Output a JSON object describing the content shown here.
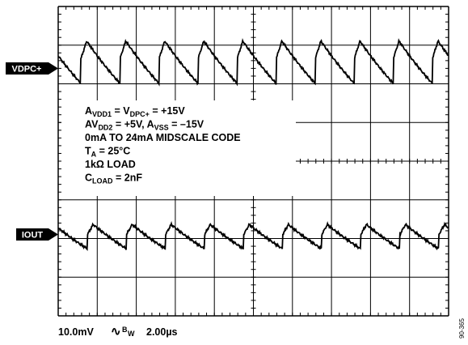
{
  "markers": {
    "channel1": "VDPC+",
    "channel2": "IOUT"
  },
  "conditions": [
    [
      {
        "t": "A"
      },
      {
        "s": "VDD1"
      },
      {
        "t": " = V"
      },
      {
        "s": "DPC+"
      },
      {
        "t": " = +15V"
      }
    ],
    [
      {
        "t": "AV"
      },
      {
        "s": "DD2"
      },
      {
        "t": " = +5V, A"
      },
      {
        "s": "VSS"
      },
      {
        "t": " = –15V"
      }
    ],
    [
      {
        "t": "0mA TO 24mA MIDSCALE CODE"
      }
    ],
    [
      {
        "t": "T"
      },
      {
        "s": "A"
      },
      {
        "t": " = 25°C"
      }
    ],
    [
      {
        "t": "1kΩ LOAD"
      }
    ],
    [
      {
        "t": "C"
      },
      {
        "s": "LOAD"
      },
      {
        "t": " = 2nF"
      }
    ]
  ],
  "footer": {
    "scale": "10.0mV",
    "bw_symbol": "∿",
    "bw_label": "B",
    "bw_sub": "W",
    "timebase": "2.00µs"
  },
  "figure_id": "90-365"
}
